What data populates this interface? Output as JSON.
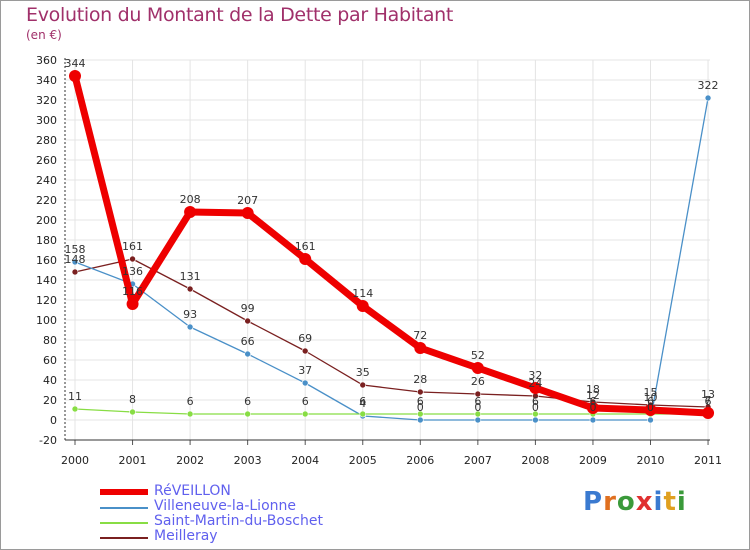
{
  "chart_data": {
    "type": "line",
    "title": "Evolution du Montant de la Dette par Habitant",
    "subtitle": "(en €)",
    "categories": [
      "2000",
      "2001",
      "2002",
      "2003",
      "2004",
      "2005",
      "2006",
      "2007",
      "2008",
      "2009",
      "2010",
      "2011"
    ],
    "ylim": [
      -20,
      360
    ],
    "yticks": [
      -20,
      0,
      20,
      40,
      60,
      80,
      100,
      120,
      140,
      160,
      180,
      200,
      220,
      240,
      260,
      280,
      300,
      320,
      340,
      360
    ],
    "grid": true,
    "legend_position": "bottom-left",
    "series": [
      {
        "name": "RéVEILLON",
        "color": "#ee0000",
        "values": [
          344,
          116,
          208,
          207,
          161,
          114,
          72,
          52,
          32,
          12,
          10,
          7
        ],
        "labels": [
          "344",
          "116",
          "208",
          "207",
          "161",
          "114",
          "72",
          "52",
          "32",
          "12",
          "10",
          "7"
        ]
      },
      {
        "name": "Villeneuve-la-Lionne",
        "color": "#4a90c8",
        "values": [
          158,
          136,
          93,
          66,
          37,
          4,
          0,
          0,
          0,
          0,
          0,
          322
        ],
        "labels": [
          "158",
          "136",
          "93",
          "66",
          "37",
          "4",
          "0",
          "0",
          "0",
          "0",
          "0",
          "322"
        ]
      },
      {
        "name": "Saint-Martin-du-Boschet",
        "color": "#88dd44",
        "values": [
          11,
          8,
          6,
          6,
          6,
          6,
          6,
          6,
          6,
          6,
          6,
          6
        ],
        "labels": [
          "11",
          "8",
          "6",
          "6",
          "6",
          "6",
          "6",
          "6",
          "6",
          "6",
          "6",
          "6"
        ]
      },
      {
        "name": "Meilleray",
        "color": "#7a2020",
        "values": [
          148,
          161,
          131,
          99,
          69,
          35,
          28,
          26,
          24,
          18,
          15,
          13
        ],
        "labels": [
          "148",
          "161",
          "131",
          "99",
          "69",
          "35",
          "28",
          "26",
          "24",
          "18",
          "15",
          "13"
        ]
      }
    ]
  },
  "logo": {
    "letters": [
      "P",
      "r",
      "o",
      "x",
      "i",
      "t",
      "i"
    ],
    "colors": [
      "#3a7ad0",
      "#e07020",
      "#3a9a3a",
      "#e03030",
      "#3a7ad0",
      "#e0a020",
      "#3a9a3a"
    ]
  }
}
